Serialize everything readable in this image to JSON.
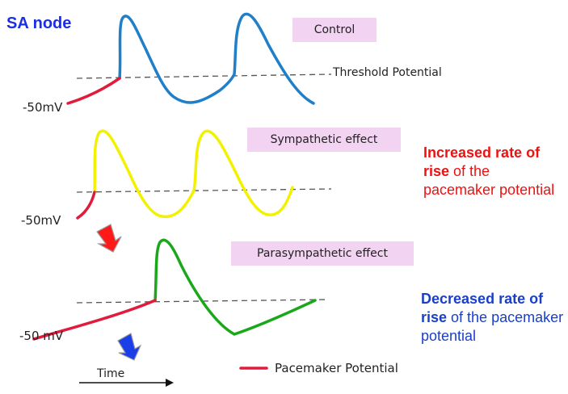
{
  "title": "SA node",
  "colors": {
    "title": "#1a2ee8",
    "control_trace": "#1f7fc8",
    "sympathetic_trace": "#f2f200",
    "parasympathetic_trace": "#1aa81a",
    "pacemaker": "#e01b3c",
    "pill_bg": "#f2d4f2",
    "increase_note": "#ee1111",
    "decrease_note": "#1a3fc8"
  },
  "panels": {
    "control": {
      "label": "Control",
      "voltage": "-50mV",
      "threshold_label": "Threshold Potential"
    },
    "sympathetic": {
      "label": "Sympathetic effect",
      "voltage": "-50mV"
    },
    "parasympathetic": {
      "label": "Parasympathetic effect",
      "voltage": "-50 mV"
    }
  },
  "notes": {
    "increase": {
      "bold": "Increased rate of rise",
      "rest": " of the pacemaker potential"
    },
    "decrease": {
      "bold": "Decreased rate of rise",
      "rest": " of the pacemaker potential"
    }
  },
  "legend": {
    "label": "Pacemaker Potential"
  },
  "axis": {
    "time_label": "Time"
  },
  "icons": [
    "red-arrow-icon",
    "blue-arrow-icon",
    "time-arrow-icon"
  ]
}
